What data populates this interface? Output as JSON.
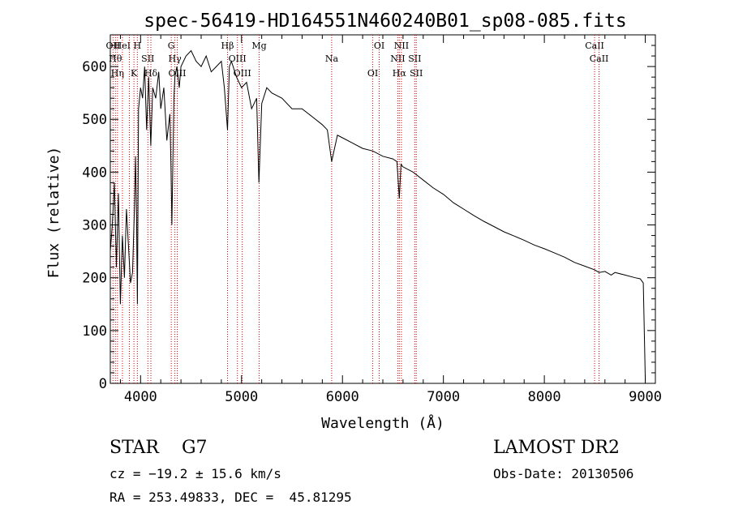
{
  "chart_data": {
    "type": "line",
    "title": "spec-56419-HD164551N460240B01_sp08-085.fits",
    "xlabel": "Wavelength (Å)",
    "ylabel": "Flux (relative)",
    "xlim": [
      3700,
      9100
    ],
    "ylim": [
      0,
      660
    ],
    "x_ticks": [
      4000,
      5000,
      6000,
      7000,
      8000,
      9000
    ],
    "y_ticks": [
      0,
      100,
      200,
      300,
      400,
      500,
      600
    ],
    "x_tick_labels": [
      "4000",
      "5000",
      "6000",
      "7000",
      "8000",
      "9000"
    ],
    "y_tick_labels": [
      "0",
      "100",
      "200",
      "300",
      "400",
      "500",
      "600"
    ],
    "grid": false,
    "line_color": "#000000",
    "marker_color": "#cc0000",
    "series": [
      {
        "x": [
          3700,
          3720,
          3740,
          3760,
          3780,
          3800,
          3820,
          3840,
          3860,
          3880,
          3900,
          3920,
          3940,
          3950,
          3960,
          3968,
          3980,
          4000,
          4020,
          4040,
          4060,
          4080,
          4101,
          4120,
          4150,
          4180,
          4200,
          4230,
          4260,
          4290,
          4300,
          4310,
          4330,
          4340,
          4360,
          4383,
          4400,
          4450,
          4500,
          4550,
          4600,
          4650,
          4700,
          4750,
          4800,
          4830,
          4861,
          4880,
          4900,
          4950,
          5000,
          5050,
          5100,
          5150,
          5172,
          5200,
          5250,
          5300,
          5400,
          5500,
          5600,
          5700,
          5800,
          5850,
          5893,
          5950,
          6000,
          6100,
          6200,
          6300,
          6400,
          6500,
          6540,
          6563,
          6580,
          6600,
          6700,
          6800,
          6900,
          7000,
          7100,
          7200,
          7300,
          7400,
          7500,
          7600,
          7700,
          7800,
          7900,
          8000,
          8100,
          8200,
          8300,
          8400,
          8498,
          8542,
          8600,
          8662,
          8700,
          8800,
          8900,
          8950,
          8980,
          9000
        ],
        "y": [
          250,
          300,
          380,
          220,
          360,
          150,
          280,
          200,
          330,
          260,
          190,
          210,
          340,
          430,
          310,
          150,
          520,
          560,
          540,
          600,
          480,
          580,
          450,
          560,
          540,
          590,
          520,
          560,
          460,
          510,
          420,
          300,
          540,
          580,
          600,
          560,
          600,
          620,
          630,
          610,
          600,
          620,
          590,
          600,
          610,
          560,
          480,
          600,
          610,
          580,
          560,
          570,
          520,
          540,
          380,
          530,
          560,
          550,
          540,
          520,
          520,
          505,
          490,
          480,
          420,
          470,
          465,
          455,
          445,
          440,
          430,
          425,
          420,
          350,
          415,
          410,
          400,
          385,
          370,
          358,
          342,
          330,
          318,
          307,
          297,
          287,
          279,
          271,
          262,
          255,
          247,
          239,
          229,
          222,
          215,
          210,
          212,
          205,
          210,
          205,
          200,
          198,
          190,
          5
        ]
      }
    ],
    "lines": [
      {
        "wl": 3727,
        "labels": [
          "OII"
        ]
      },
      {
        "wl": 3750,
        "labels": [
          "Hθ"
        ]
      },
      {
        "wl": 3771,
        "labels": [
          "Hη"
        ]
      },
      {
        "wl": 3820,
        "labels": [
          "HeI"
        ]
      },
      {
        "wl": 3889,
        "labels": [
          ""
        ]
      },
      {
        "wl": 3934,
        "labels": [
          "K"
        ]
      },
      {
        "wl": 3968,
        "labels": [
          "H"
        ]
      },
      {
        "wl": 4072,
        "labels": [
          "SII"
        ]
      },
      {
        "wl": 4102,
        "labels": [
          "Hδ"
        ]
      },
      {
        "wl": 4304,
        "labels": [
          "G"
        ]
      },
      {
        "wl": 4340,
        "labels": [
          "Hγ"
        ]
      },
      {
        "wl": 4363,
        "labels": [
          "OIII"
        ]
      },
      {
        "wl": 4861,
        "labels": [
          "Hβ"
        ]
      },
      {
        "wl": 4959,
        "labels": [
          "OIII"
        ]
      },
      {
        "wl": 5007,
        "labels": [
          "OIII"
        ]
      },
      {
        "wl": 5175,
        "labels": [
          "Mg"
        ]
      },
      {
        "wl": 5893,
        "labels": [
          "Na"
        ]
      },
      {
        "wl": 6300,
        "labels": [
          "OI"
        ]
      },
      {
        "wl": 6364,
        "labels": [
          "OI"
        ]
      },
      {
        "wl": 6548,
        "labels": [
          "NII"
        ]
      },
      {
        "wl": 6563,
        "labels": [
          "Hα"
        ]
      },
      {
        "wl": 6584,
        "labels": [
          "NII"
        ]
      },
      {
        "wl": 6716,
        "labels": [
          "SII"
        ]
      },
      {
        "wl": 6731,
        "labels": [
          "SII"
        ]
      },
      {
        "wl": 8498,
        "labels": [
          "CaII"
        ]
      },
      {
        "wl": 8542,
        "labels": [
          "CaII"
        ]
      }
    ]
  },
  "info": {
    "left_line1": "STAR    G7",
    "left_line2": "cz = −19.2 ± 15.6 km/s",
    "left_line3": "RA = 253.49833, DEC =  45.81295",
    "right_line1": "LAMOST DR2",
    "right_line2": "Obs-Date: 20130506"
  }
}
